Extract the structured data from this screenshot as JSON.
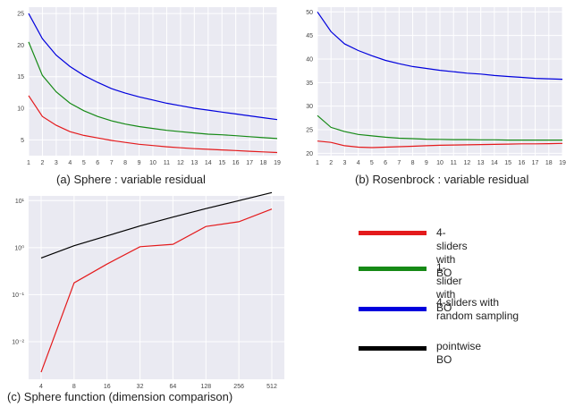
{
  "chart_data": [
    {
      "type": "line",
      "title": "(a) Sphere : variable residual",
      "xlabel": "",
      "ylabel": "",
      "x": [
        1,
        2,
        3,
        4,
        5,
        6,
        7,
        8,
        9,
        10,
        11,
        12,
        13,
        14,
        15,
        16,
        17,
        18,
        19
      ],
      "xlim": [
        1,
        19
      ],
      "ylim": [
        2.5,
        26
      ],
      "y_ticks": [
        5,
        10,
        15,
        20,
        25
      ],
      "grid": true,
      "series": [
        {
          "name": "4-sliders with BO",
          "color": "#e41a1c",
          "values": [
            12,
            8.7,
            7.3,
            6.3,
            5.7,
            5.3,
            4.9,
            4.6,
            4.3,
            4.1,
            3.9,
            3.75,
            3.6,
            3.5,
            3.4,
            3.3,
            3.2,
            3.1,
            3.0
          ]
        },
        {
          "name": "1-slider with BO",
          "color": "#168a16",
          "values": [
            20.5,
            15.2,
            12.6,
            10.8,
            9.6,
            8.7,
            8.0,
            7.5,
            7.1,
            6.8,
            6.5,
            6.3,
            6.1,
            5.9,
            5.8,
            5.65,
            5.5,
            5.35,
            5.2
          ]
        },
        {
          "name": "4-sliders with random sampling",
          "color": "#0000dd",
          "values": [
            25,
            21,
            18.4,
            16.6,
            15.2,
            14.1,
            13.1,
            12.4,
            11.8,
            11.3,
            10.8,
            10.4,
            10.0,
            9.7,
            9.4,
            9.1,
            8.8,
            8.5,
            8.2
          ]
        }
      ]
    },
    {
      "type": "line",
      "title": "(b) Rosenbrock : variable residual",
      "xlabel": "",
      "ylabel": "",
      "x": [
        1,
        2,
        3,
        4,
        5,
        6,
        7,
        8,
        9,
        10,
        11,
        12,
        13,
        14,
        15,
        16,
        17,
        18,
        19
      ],
      "xlim": [
        1,
        19
      ],
      "ylim": [
        19.5,
        51
      ],
      "y_ticks": [
        20,
        25,
        30,
        35,
        40,
        45,
        50
      ],
      "grid": true,
      "series": [
        {
          "name": "4-sliders with BO",
          "color": "#e41a1c",
          "values": [
            22.6,
            22.3,
            21.6,
            21.3,
            21.2,
            21.3,
            21.4,
            21.5,
            21.6,
            21.7,
            21.75,
            21.8,
            21.85,
            21.9,
            21.95,
            22.0,
            22.0,
            22.05,
            22.1
          ]
        },
        {
          "name": "1-slider with BO",
          "color": "#168a16",
          "values": [
            28,
            25.5,
            24.6,
            24.0,
            23.7,
            23.4,
            23.2,
            23.1,
            23.0,
            22.95,
            22.9,
            22.9,
            22.85,
            22.85,
            22.8,
            22.8,
            22.8,
            22.8,
            22.8
          ]
        },
        {
          "name": "4-sliders with random sampling",
          "color": "#0000dd",
          "values": [
            50,
            45.8,
            43.2,
            41.8,
            40.7,
            39.7,
            39.0,
            38.4,
            38.0,
            37.6,
            37.3,
            37.0,
            36.8,
            36.5,
            36.3,
            36.1,
            35.9,
            35.8,
            35.7
          ]
        }
      ]
    },
    {
      "type": "line",
      "title": "(c) Sphere function (dimension comparison)",
      "xlabel": "",
      "ylabel": "",
      "x": [
        "4",
        "8",
        "16",
        "32",
        "64",
        "128",
        "256",
        "512"
      ],
      "y_scale": "log",
      "ylim_log10": [
        -2.8,
        1.1
      ],
      "y_ticks": [
        {
          "exp": 1,
          "label": "10¹"
        },
        {
          "exp": 0,
          "label": "10⁰"
        },
        {
          "exp": -1,
          "label": "10⁻¹"
        },
        {
          "exp": -2,
          "label": "10⁻²"
        }
      ],
      "grid": true,
      "series": [
        {
          "name": "4-sliders with BO",
          "color": "#e41a1c",
          "log10_values": [
            -2.65,
            -0.75,
            -0.35,
            0.02,
            0.07,
            0.45,
            0.55,
            0.82
          ]
        },
        {
          "name": "pointwise BO",
          "color": "#000000",
          "log10_values": [
            -0.22,
            0.04,
            0.25,
            0.46,
            0.65,
            0.83,
            1.0,
            1.17
          ]
        }
      ]
    }
  ],
  "legend": [
    {
      "label": "4-sliders with BO",
      "color": "#e41a1c"
    },
    {
      "label": "1-slider with BO",
      "color": "#168a16"
    },
    {
      "label": "4-sliders with\nrandom sampling",
      "color": "#0000dd"
    },
    {
      "label": "pointwise BO",
      "color": "#000000"
    }
  ],
  "captions": {
    "a": "(a) Sphere : variable residual",
    "b": "(b) Rosenbrock : variable residual",
    "c": "(c) Sphere function (dimension comparison)"
  }
}
